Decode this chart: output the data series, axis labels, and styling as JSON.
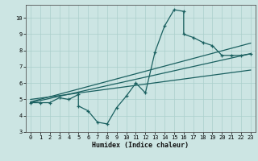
{
  "xlabel": "Humidex (Indice chaleur)",
  "bg_color": "#cce5e3",
  "grid_color": "#aacfcc",
  "line_color": "#1a6060",
  "xlim": [
    -0.5,
    23.5
  ],
  "ylim": [
    3,
    10.8
  ],
  "yticks": [
    3,
    4,
    5,
    6,
    7,
    8,
    9,
    10
  ],
  "xticks": [
    0,
    1,
    2,
    3,
    4,
    5,
    6,
    7,
    8,
    9,
    10,
    11,
    12,
    13,
    14,
    15,
    16,
    17,
    18,
    19,
    20,
    21,
    22,
    23
  ],
  "scatter_x": [
    0,
    1,
    2,
    3,
    4,
    5,
    5,
    6,
    7,
    8,
    9,
    10,
    11,
    12,
    13,
    14,
    15,
    16,
    16,
    17,
    18,
    19,
    20,
    21,
    22,
    23
  ],
  "scatter_y": [
    4.8,
    4.8,
    4.8,
    5.1,
    5.0,
    5.3,
    4.6,
    4.3,
    3.6,
    3.5,
    4.5,
    5.2,
    6.0,
    5.4,
    7.9,
    9.5,
    10.5,
    10.4,
    9.0,
    8.8,
    8.5,
    8.3,
    7.7,
    7.7,
    7.7,
    7.8
  ],
  "line1_x": [
    0,
    23
  ],
  "line1_y": [
    4.8,
    7.8
  ],
  "line2_x": [
    0,
    23
  ],
  "line2_y": [
    4.85,
    8.45
  ],
  "line3_x": [
    0,
    23
  ],
  "line3_y": [
    5.0,
    6.8
  ],
  "tick_fontsize": 5.0,
  "xlabel_fontsize": 6.0
}
